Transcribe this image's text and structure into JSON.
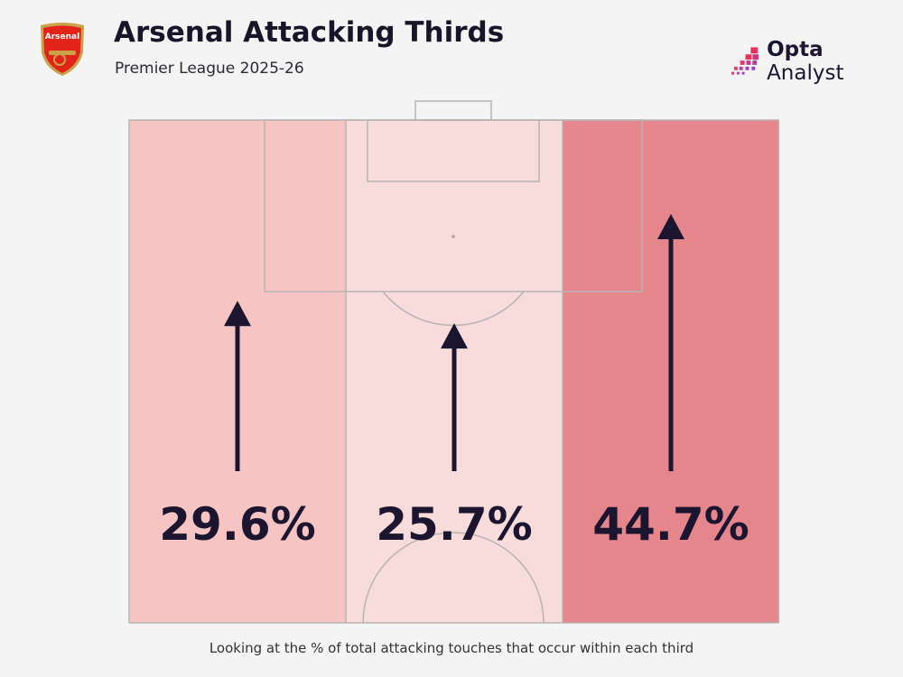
{
  "header": {
    "title": "Arsenal Attacking Thirds",
    "subtitle": "Premier League 2025-26",
    "badge_text": "Arsenal",
    "logo_bold": "Opta",
    "logo_rest": " Analyst"
  },
  "caption": "Looking at the % of total attacking touches that occur within each third",
  "colors": {
    "left": "#f6c5c3",
    "middle": "#f8dbdb",
    "right": "#e5868c",
    "arrow": "#1c1530",
    "lines": "#b9b3b3"
  },
  "chart_data": {
    "type": "bar",
    "categories": [
      "Left third",
      "Central third",
      "Right third"
    ],
    "values": [
      29.6,
      25.7,
      44.7
    ],
    "labels": [
      "29.6%",
      "25.7%",
      "44.7%"
    ],
    "unit": "%"
  }
}
